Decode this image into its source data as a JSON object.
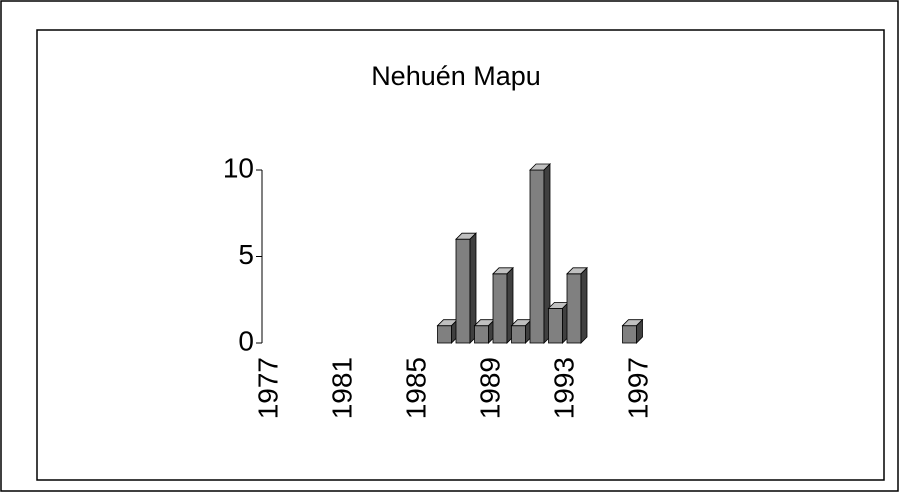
{
  "chart_data": {
    "type": "bar3d",
    "title": "Nehuén Mapu",
    "categories": [
      "1977",
      null,
      null,
      null,
      "1981",
      null,
      null,
      null,
      "1985",
      null,
      null,
      null,
      "1989",
      null,
      null,
      null,
      "1993",
      null,
      null,
      null,
      "1997"
    ],
    "values": [
      0,
      0,
      0,
      0,
      0,
      0,
      0,
      0,
      0,
      1,
      6,
      1,
      4,
      1,
      10,
      2,
      4,
      0,
      0,
      1,
      0
    ],
    "color": "#808080",
    "ylim": [
      0,
      10
    ],
    "yticks": [
      0,
      5,
      10
    ]
  }
}
